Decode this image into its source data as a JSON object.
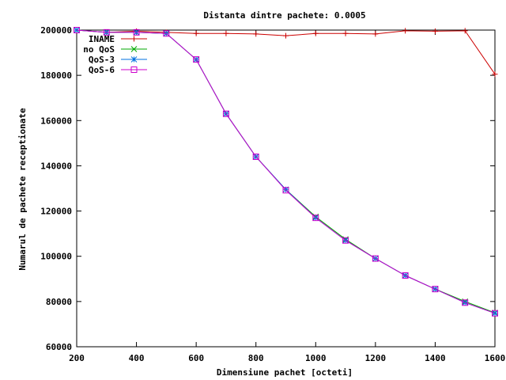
{
  "chart_data": {
    "type": "line",
    "title": "Distanta dintre pachete: 0.0005",
    "xlabel": "Dimensiune pachet [octeti]",
    "ylabel": "Numarul de pachete receptionate",
    "xlim": [
      200,
      1600
    ],
    "ylim": [
      60000,
      200000
    ],
    "xticks": [
      200,
      400,
      600,
      800,
      1000,
      1200,
      1400,
      1600
    ],
    "yticks": [
      60000,
      80000,
      100000,
      120000,
      140000,
      160000,
      180000,
      200000
    ],
    "grid": false,
    "legend_position": "top-left",
    "x": [
      200,
      300,
      400,
      500,
      600,
      700,
      800,
      900,
      1000,
      1100,
      1200,
      1300,
      1400,
      1500,
      1600
    ],
    "series": [
      {
        "name": "INAME",
        "color": "#cc0000",
        "marker": "plus",
        "values": [
          200000,
          199000,
          199500,
          199000,
          198500,
          198500,
          198300,
          197500,
          198500,
          198500,
          198300,
          199700,
          199500,
          199700,
          180500
        ]
      },
      {
        "name": "no QoS",
        "color": "#00aa00",
        "marker": "cross",
        "values": [
          200000,
          199000,
          199000,
          198500,
          187000,
          163000,
          144000,
          129500,
          117500,
          107500,
          99000,
          91500,
          85500,
          80000,
          75000
        ]
      },
      {
        "name": "QoS-3",
        "color": "#0070e0",
        "marker": "star",
        "values": [
          200000,
          199000,
          199000,
          198500,
          187000,
          163000,
          144000,
          129500,
          117000,
          107000,
          99000,
          91500,
          85500,
          79500,
          74800
        ]
      },
      {
        "name": "QoS-6",
        "color": "#cc00cc",
        "marker": "square",
        "values": [
          200000,
          199000,
          199000,
          198500,
          187000,
          163000,
          144000,
          129200,
          117000,
          107000,
          99000,
          91500,
          85500,
          79500,
          74800
        ]
      }
    ]
  }
}
